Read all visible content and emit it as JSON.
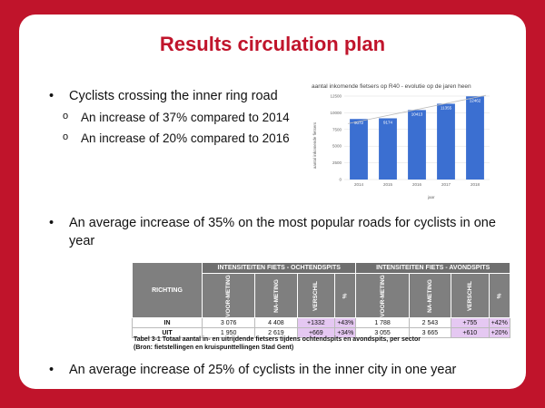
{
  "slide": {
    "title": "Results circulation plan",
    "bullets": {
      "b1": "Cyclists crossing the inner ring road",
      "s1": "An increase of 37% compared to 2014",
      "s2": "An increase of 20% compared to 2016",
      "b2": "An average increase of 35% on the most popular roads for cyclists in one year",
      "b3": "An average increase of 25% of cyclists in the inner city in one year"
    },
    "bullet_symbol": "•",
    "sub_symbol": "o"
  },
  "chart_data": {
    "type": "bar",
    "title": "aantal inkomende fietsers op R40 - evolutie op de jaren heen",
    "xlabel": "jaar",
    "ylabel": "aantal inkomende fietsers",
    "categories": [
      "2014",
      "2015",
      "2016",
      "2017",
      "2018"
    ],
    "values": [
      9072,
      9174,
      10413,
      11355,
      12462
    ],
    "ylim": [
      0,
      12500
    ],
    "yticks": [
      "0",
      "2500",
      "5000",
      "7500",
      "10000",
      "12500"
    ],
    "bar_color": "#3b6fd1",
    "trendline": true,
    "grid": true
  },
  "table": {
    "header_richting": "RICHTING",
    "group_ochtend": "INTENSITEITEN FIETS - OCHTENDSPITS",
    "group_avond": "INTENSITEITEN FIETS - AVONDSPITS",
    "sub_headers": [
      "VOOR-METING",
      "NA-METING",
      "VERSCHIL",
      "%",
      "VOOR-METING",
      "NA-METING",
      "VERSCHIL",
      "%"
    ],
    "rows": [
      {
        "label": "IN",
        "cells": [
          "3 076",
          "4 408",
          "+1332",
          "+43%",
          "1 788",
          "2 543",
          "+755",
          "+42%"
        ]
      },
      {
        "label": "UIT",
        "cells": [
          "1 950",
          "2 619",
          "+669",
          "+34%",
          "3 055",
          "3 665",
          "+610",
          "+20%"
        ]
      }
    ],
    "caption_line1": "Tabel 3-1 Totaal aantal in- en uitrijdende fietsers tijdens ochtendspits en avondspits, per sector",
    "caption_line2": "(Bron: fietstellingen en kruispunttellingen Stad Gent)"
  }
}
